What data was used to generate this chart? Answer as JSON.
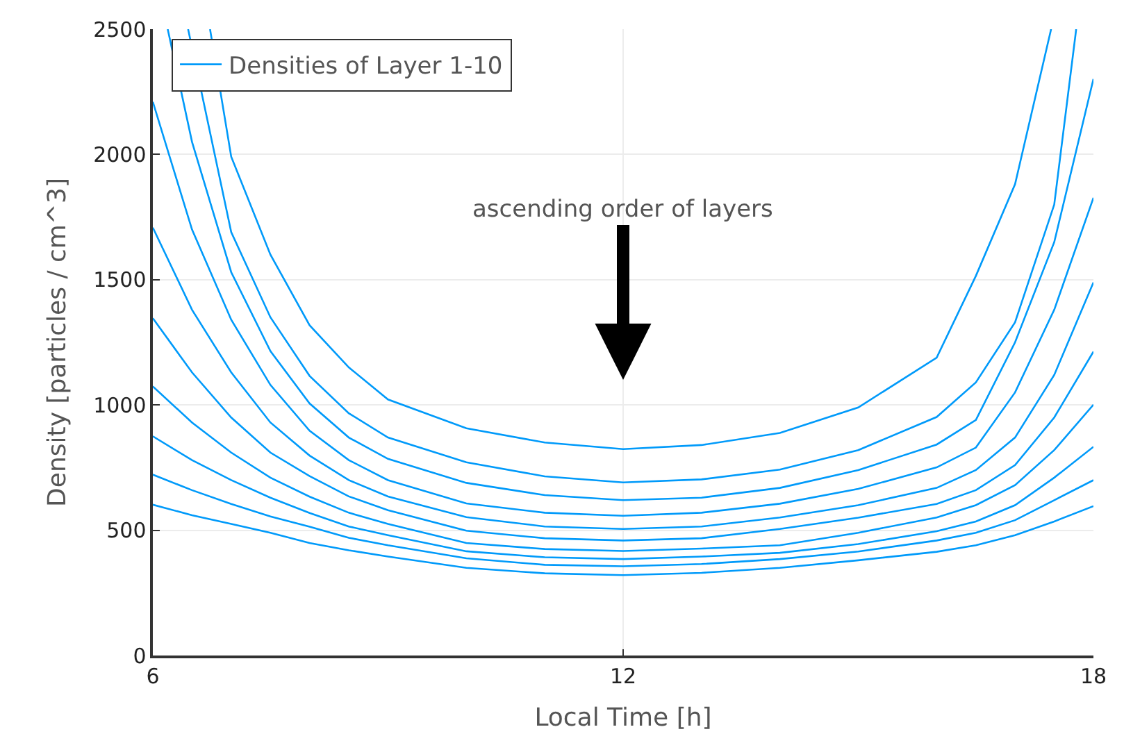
{
  "chart_data": {
    "type": "line",
    "xlabel": "Local Time [h]",
    "ylabel": "Density [particles / cm^3]",
    "xlim": [
      6,
      18
    ],
    "xticks": [
      6,
      12,
      18
    ],
    "ylim": [
      0,
      2500
    ],
    "yticks": [
      0,
      500,
      1000,
      1500,
      2000,
      2500
    ],
    "grid": true,
    "legend": "top left",
    "marker": "none",
    "line_style": "solid",
    "annotations": [
      "ascending order of layers"
    ],
    "series": [
      {
        "name": "Densities of Layer 1-10",
        "color": "#009afa",
        "x": [
          6.73,
          7,
          7.5,
          8,
          8.5,
          9,
          10,
          11,
          12,
          13,
          14,
          15,
          16,
          16.5,
          17,
          17.46
        ],
        "values": [
          2500,
          1991,
          1600,
          1318,
          1150,
          1022,
          907,
          850,
          824,
          840,
          888,
          990,
          1189,
          1515,
          1881,
          2500
        ]
      },
      {
        "color": "#009afa",
        "x": [
          6.45,
          7,
          7.5,
          8,
          8.5,
          9,
          10,
          11,
          12,
          13,
          14,
          15,
          16,
          16.5,
          17,
          17.5,
          17.78
        ],
        "values": [
          2500,
          1690,
          1350,
          1116,
          967,
          870,
          771,
          715,
          691,
          703,
          742,
          820,
          952,
          1090,
          1330,
          1800,
          2500
        ]
      },
      {
        "color": "#009afa",
        "x": [
          6.19,
          6.5,
          7,
          7.5,
          8,
          8.5,
          9,
          10,
          11,
          12,
          13,
          14,
          15,
          16,
          16.5,
          17,
          17.5,
          18
        ],
        "values": [
          2500,
          2050,
          1530,
          1215,
          1006,
          870,
          785,
          689,
          640,
          620,
          630,
          669,
          740,
          842,
          940,
          1250,
          1650,
          2301
        ]
      },
      {
        "color": "#009afa",
        "x": [
          6,
          6.5,
          7,
          7.5,
          8,
          8.5,
          9,
          10,
          11,
          12,
          13,
          14,
          15,
          16,
          16.5,
          17,
          17.5,
          18
        ],
        "values": [
          2210,
          1700,
          1340,
          1080,
          897,
          780,
          700,
          607,
          570,
          558,
          570,
          606,
          665,
          751,
          830,
          1050,
          1380,
          1827
        ]
      },
      {
        "color": "#009afa",
        "x": [
          6,
          6.5,
          7,
          7.5,
          8,
          8.5,
          9,
          10,
          11,
          12,
          13,
          14,
          15,
          16,
          16.5,
          17,
          17.5,
          18
        ],
        "values": [
          1708,
          1380,
          1130,
          930,
          798,
          700,
          635,
          552,
          515,
          505,
          515,
          551,
          600,
          669,
          740,
          870,
          1120,
          1489
        ]
      },
      {
        "color": "#009afa",
        "x": [
          6,
          6.5,
          7,
          7.5,
          8,
          8.5,
          9,
          10,
          11,
          12,
          13,
          14,
          15,
          16,
          16.5,
          17,
          17.5,
          18
        ],
        "values": [
          1346,
          1130,
          950,
          810,
          716,
          635,
          580,
          498,
          468,
          459,
          468,
          505,
          550,
          605,
          660,
          760,
          950,
          1213
        ]
      },
      {
        "color": "#009afa",
        "x": [
          6,
          6.5,
          7,
          7.5,
          8,
          8.5,
          9,
          10,
          11,
          12,
          13,
          14,
          15,
          16,
          16.5,
          17,
          17.5,
          18
        ],
        "values": [
          1074,
          930,
          810,
          710,
          634,
          570,
          525,
          449,
          425,
          417,
          427,
          440,
          490,
          551,
          600,
          680,
          820,
          1001
        ]
      },
      {
        "color": "#009afa",
        "x": [
          6,
          6.5,
          7,
          7.5,
          8,
          8.5,
          9,
          10,
          11,
          12,
          13,
          14,
          15,
          16,
          16.5,
          17,
          17.5,
          18
        ],
        "values": [
          875,
          780,
          700,
          630,
          569,
          515,
          480,
          416,
          392,
          385,
          395,
          410,
          445,
          496,
          535,
          600,
          710,
          833
        ]
      },
      {
        "color": "#009afa",
        "x": [
          6,
          6.5,
          7,
          7.5,
          8,
          8.5,
          9,
          10,
          11,
          12,
          13,
          14,
          15,
          16,
          16.5,
          17,
          17.5,
          18
        ],
        "values": [
          722,
          660,
          605,
          555,
          514,
          470,
          440,
          388,
          362,
          356,
          365,
          385,
          415,
          459,
          490,
          540,
          620,
          700
        ]
      },
      {
        "color": "#009afa",
        "x": [
          6,
          6.5,
          7,
          7.5,
          8,
          8.5,
          9,
          10,
          11,
          12,
          13,
          14,
          15,
          16,
          16.5,
          17,
          17.5,
          18
        ],
        "values": [
          602,
          560,
          525,
          490,
          449,
          420,
          395,
          350,
          328,
          321,
          330,
          350,
          380,
          414,
          440,
          480,
          535,
          596
        ]
      }
    ]
  }
}
